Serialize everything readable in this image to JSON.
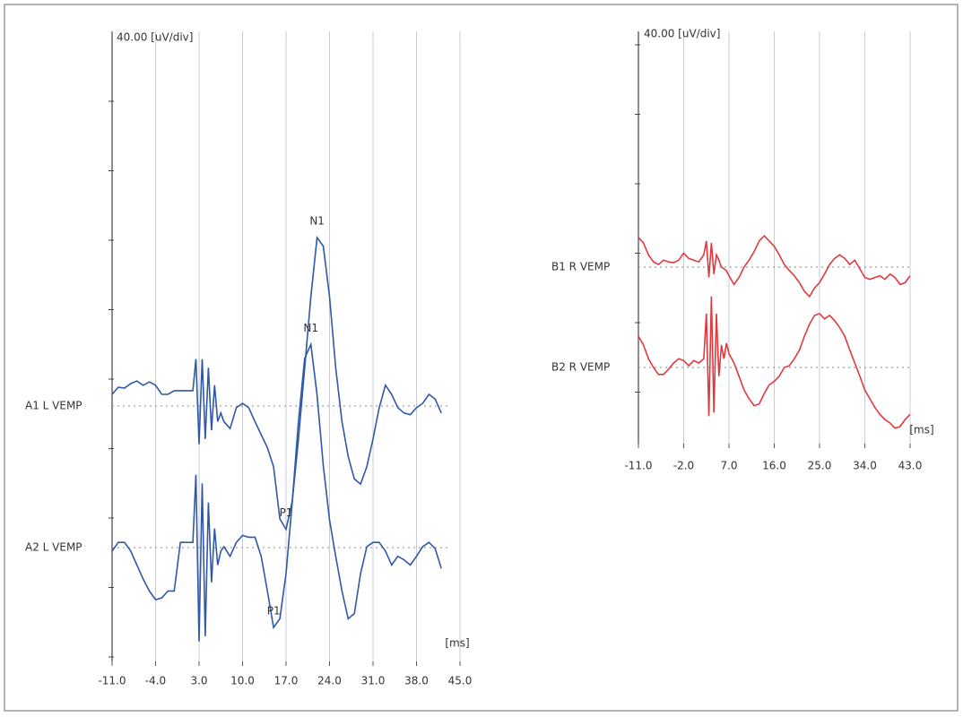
{
  "chart_data": [
    {
      "type": "line",
      "y_label": "40.00 [uV/div]",
      "x_label": "[ms]",
      "x": [
        -11,
        -10,
        -9,
        -8,
        -7,
        -6,
        -5,
        -4,
        -3,
        -2,
        -1,
        0,
        1,
        2,
        2.5,
        3,
        3.5,
        4,
        4.5,
        5,
        5.5,
        6,
        6.5,
        7,
        8,
        9,
        10,
        11,
        12,
        13,
        14,
        15,
        16,
        17,
        18,
        19,
        20,
        21,
        22,
        23,
        24,
        25,
        26,
        27,
        28,
        29,
        30,
        31,
        32,
        33,
        34,
        35,
        36,
        37,
        38,
        39,
        40,
        41,
        42,
        43
      ],
      "xlim": [
        -11,
        45
      ],
      "xticks": [
        {
          "value": -11,
          "label": "-11.0"
        },
        {
          "value": -4,
          "label": "-4.0"
        },
        {
          "value": 3,
          "label": "3.0"
        },
        {
          "value": 10,
          "label": "10.0"
        },
        {
          "value": 17,
          "label": "17.0"
        },
        {
          "value": 24,
          "label": "24.0"
        },
        {
          "value": 31,
          "label": "31.0"
        },
        {
          "value": 38,
          "label": "38.0"
        },
        {
          "value": 45,
          "label": "45.0"
        }
      ],
      "grid": true,
      "series": [
        {
          "name": "A1 L VEMP",
          "color": "#2f58a6",
          "values": [
            6.7,
            10.8,
            10.3,
            12.9,
            14.4,
            11.9,
            13.9,
            11.9,
            6.7,
            6.7,
            8.8,
            8.8,
            8.8,
            8.8,
            27,
            -22,
            27,
            -19,
            22,
            -14,
            12,
            -9,
            -4,
            -9,
            -13,
            -1,
            1.5,
            -1,
            -9,
            -16.5,
            -24,
            -35,
            -65,
            -71,
            -55,
            -19,
            22,
            63,
            97,
            92,
            63,
            22,
            -9,
            -29,
            -42,
            -45,
            -35,
            -19,
            -1,
            12,
            6.7,
            -1,
            -4,
            -5,
            -1,
            1.5,
            6.7,
            4,
            -4,
            null
          ],
          "annotations": [
            {
              "text": "N1",
              "x": 22
            },
            {
              "text": "P1",
              "x": 17
            }
          ]
        },
        {
          "name": "A2 L VEMP",
          "color": "#2f58a6",
          "values": [
            -2,
            3,
            3,
            -2,
            -10,
            -18,
            -25,
            -30,
            -29,
            -25,
            -25,
            3,
            3,
            3,
            42,
            -54,
            37,
            -51,
            26,
            -20,
            11,
            -10,
            -2,
            0.5,
            -5,
            3,
            7,
            6,
            6,
            -5,
            -25,
            -46,
            -41,
            -15,
            26,
            73,
            109,
            117,
            88,
            47,
            16,
            -5,
            -25,
            -41,
            -38,
            -15,
            0.5,
            3,
            3,
            -2,
            -10,
            -5,
            -7,
            -10,
            -5,
            0.5,
            3,
            -0.5,
            -12,
            null
          ],
          "annotations": [
            {
              "text": "N1",
              "x": 21
            },
            {
              "text": "P1",
              "x": 15
            }
          ]
        }
      ]
    },
    {
      "type": "line",
      "y_label": "40.00 [uV/div]",
      "x_label": "[ms]",
      "x": [
        -11,
        -10,
        -9,
        -8,
        -7,
        -6,
        -5,
        -4,
        -3,
        -2,
        -1,
        0,
        1,
        2,
        2.5,
        3,
        3.5,
        4,
        4.5,
        5,
        5.5,
        6,
        6.5,
        7,
        8,
        9,
        10,
        11,
        12,
        13,
        14,
        15,
        16,
        17,
        18,
        19,
        20,
        21,
        22,
        23,
        24,
        25,
        26,
        27,
        28,
        29,
        30,
        31,
        32,
        33,
        34,
        35,
        36,
        37,
        38,
        39,
        40,
        41,
        42,
        43
      ],
      "xlim": [
        -11,
        43
      ],
      "xticks": [
        {
          "value": -11,
          "label": "-11.0"
        },
        {
          "value": -2,
          "label": "-2.0"
        },
        {
          "value": 7,
          "label": "7.0"
        },
        {
          "value": 16,
          "label": "16.0"
        },
        {
          "value": 25,
          "label": "25.0"
        },
        {
          "value": 34,
          "label": "34.0"
        },
        {
          "value": 43,
          "label": "43.0"
        }
      ],
      "grid": true,
      "series": [
        {
          "name": "B1 R VEMP",
          "color": "#e0393e",
          "values": [
            17,
            14,
            7,
            3,
            1.5,
            4,
            3,
            2.6,
            4,
            8,
            5,
            4,
            3,
            7,
            15,
            -6,
            14,
            -4,
            7,
            4,
            0,
            -1,
            -2,
            -5,
            -10,
            -6,
            0,
            4,
            9,
            15,
            18,
            15,
            12,
            7,
            1.5,
            -2,
            -5,
            -9,
            -14,
            -17,
            -12,
            -9,
            -4,
            1.5,
            5,
            7,
            5,
            1.5,
            4,
            -1,
            -6,
            -7,
            -6,
            -5,
            -7,
            -4,
            -6,
            -10,
            -9,
            -5
          ]
        },
        {
          "name": "B2 R VEMP",
          "color": "#e0393e",
          "values": [
            18,
            13,
            5,
            0,
            -4,
            -4,
            -1,
            2.6,
            5,
            4,
            1,
            4,
            2.6,
            5,
            31,
            -28,
            41,
            -26,
            31,
            -5,
            13,
            5,
            14,
            8,
            2.6,
            -5,
            -13,
            -18,
            -22,
            -21,
            -15,
            -10,
            -8,
            -5,
            0,
            1,
            5,
            10,
            18,
            25,
            30,
            31,
            28,
            30,
            27,
            23,
            18,
            10,
            2.6,
            -5,
            -13,
            -18,
            -23,
            -27,
            -30,
            -32,
            -35,
            -34,
            -30,
            -27
          ]
        }
      ]
    }
  ]
}
